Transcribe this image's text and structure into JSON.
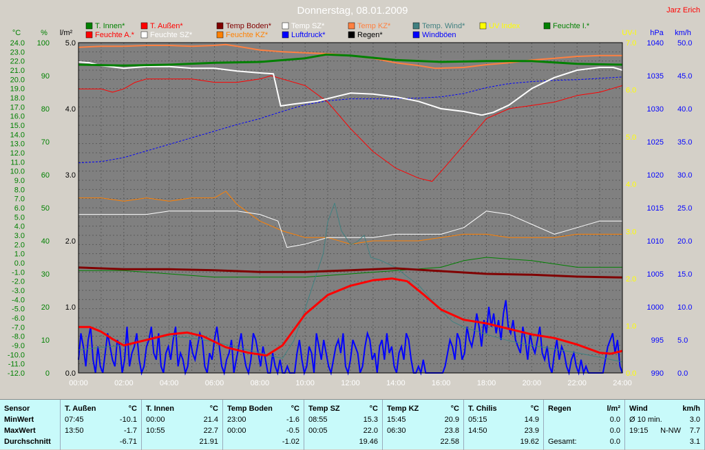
{
  "chart_data": {
    "type": "line",
    "title": "Donnerstag, 08.01.2009",
    "author": "Jarz Erich",
    "x_ticks": [
      "00:00",
      "02:00",
      "04:00",
      "06:00",
      "08:00",
      "10:00",
      "12:00",
      "14:00",
      "16:00",
      "18:00",
      "20:00",
      "22:00",
      "24:00"
    ],
    "axes": {
      "temp": {
        "unit": "°C",
        "min": -12,
        "max": 24,
        "ticks": [
          "24.0",
          "23.0",
          "22.0",
          "21.0",
          "20.0",
          "19.0",
          "18.0",
          "17.0",
          "16.0",
          "15.0",
          "14.0",
          "13.0",
          "12.0",
          "11.0",
          "10.0",
          "9.0",
          "8.0",
          "7.0",
          "6.0",
          "5.0",
          "4.0",
          "3.0",
          "2.0",
          "1.0",
          "0.0",
          "-1.0",
          "-2.0",
          "-3.0",
          "-4.0",
          "-5.0",
          "-6.0",
          "-7.0",
          "-8.0",
          "-9.0",
          "-10.0",
          "-11.0",
          "-12.0"
        ]
      },
      "humidity": {
        "unit": "%",
        "min": 0,
        "max": 100,
        "ticks": [
          "100",
          "90",
          "80",
          "70",
          "60",
          "50",
          "40",
          "30",
          "20",
          "10",
          "0"
        ]
      },
      "rain": {
        "unit": "l/m²",
        "min": 0,
        "max": 5,
        "ticks": [
          "5.0",
          "4.0",
          "3.0",
          "2.0",
          "1.0",
          "0.0"
        ]
      },
      "uv": {
        "unit": "UV-I",
        "min": 0,
        "max": 7,
        "ticks": [
          "7.0",
          "6.0",
          "5.0",
          "4.0",
          "3.0",
          "2.0",
          "1.0",
          "0.0"
        ]
      },
      "pressure": {
        "unit": "hPa",
        "min": 990,
        "max": 1040,
        "ticks": [
          "1040",
          "1035",
          "1030",
          "1025",
          "1020",
          "1015",
          "1010",
          "1005",
          "1000",
          "995",
          "990"
        ]
      },
      "wind": {
        "unit": "km/h",
        "min": 0,
        "max": 50,
        "ticks": [
          "50.0",
          "45.0",
          "40.0",
          "35.0",
          "30.0",
          "25.0",
          "20.0",
          "15.0",
          "10.0",
          "5.0",
          "0.0"
        ]
      }
    },
    "legend": [
      {
        "name": "T. Innen*",
        "color": "#008000"
      },
      {
        "name": "T. Außen*",
        "color": "#ff0000"
      },
      {
        "name": "Temp Boden*",
        "color": "#800000"
      },
      {
        "name": "Temp SZ*",
        "color": "#ffffff"
      },
      {
        "name": "Temp KZ*",
        "color": "#ff8040"
      },
      {
        "name": "Temp. Wind*",
        "color": "#408080"
      },
      {
        "name": "UV Index",
        "color": "#ffff00"
      },
      {
        "name": "Feuchte I.*",
        "color": "#008000"
      },
      {
        "name": "Feuchte A.*",
        "color": "#ff0000"
      },
      {
        "name": "Feuchte SZ*",
        "color": "#ffffff"
      },
      {
        "name": "Feuchte KZ*",
        "color": "#ff8000"
      },
      {
        "name": "Luftdruck*",
        "color": "#0000ff"
      },
      {
        "name": "Regen*",
        "color": "#000000"
      },
      {
        "name": "Windböen",
        "color": "#0000ff"
      }
    ],
    "series": [
      {
        "name": "T. Innen*",
        "axis": "temp",
        "color": "#008000",
        "width": 3,
        "x": [
          0,
          2,
          4,
          6,
          8,
          10,
          10.92,
          12,
          14,
          16,
          18,
          20,
          22,
          24
        ],
        "y": [
          21.6,
          21.5,
          21.6,
          21.8,
          21.9,
          22.3,
          22.7,
          22.6,
          22.1,
          21.9,
          22.0,
          22.0,
          21.7,
          21.6
        ]
      },
      {
        "name": "T. Außen*",
        "axis": "temp",
        "color": "#ff0000",
        "width": 3,
        "x": [
          0,
          0.5,
          1,
          1.5,
          2,
          3,
          4,
          4.8,
          5.5,
          6.5,
          7.5,
          8.3,
          9,
          10,
          11,
          12,
          13,
          13.83,
          14.5,
          15.2,
          16,
          17,
          18,
          19,
          20,
          21,
          22,
          23,
          23.5,
          24
        ],
        "y": [
          -7.0,
          -7.0,
          -7.5,
          -8.3,
          -9.0,
          -8.4,
          -7.8,
          -7.6,
          -8.0,
          -9.2,
          -9.8,
          -10.1,
          -9.0,
          -5.6,
          -3.5,
          -2.5,
          -1.9,
          -1.7,
          -2.0,
          -3.4,
          -5.1,
          -6.2,
          -6.6,
          -7.2,
          -7.8,
          -8.2,
          -8.9,
          -9.8,
          -9.9,
          -9.6
        ]
      },
      {
        "name": "Temp Boden*",
        "axis": "temp",
        "color": "#800000",
        "width": 3,
        "x": [
          0,
          2,
          4,
          6,
          8,
          10,
          12,
          14,
          16,
          18,
          20,
          22,
          24
        ],
        "y": [
          -0.5,
          -0.7,
          -0.7,
          -0.8,
          -1.0,
          -1.0,
          -0.8,
          -0.6,
          -0.9,
          -1.2,
          -1.3,
          -1.5,
          -1.6
        ]
      },
      {
        "name": "Temp SZ*",
        "axis": "temp",
        "color": "#ffffff",
        "width": 2,
        "x": [
          0,
          0.5,
          1,
          2,
          3,
          4,
          5,
          6,
          7,
          8,
          8.6,
          8.92,
          9.5,
          10.5,
          11.5,
          12,
          13,
          14,
          15,
          16,
          17,
          17.8,
          18.3,
          19,
          20,
          21,
          22,
          23,
          23.6,
          24
        ],
        "y": [
          21.9,
          21.8,
          21.5,
          21.2,
          21.4,
          21.4,
          21.2,
          21.2,
          20.9,
          20.7,
          20.6,
          17.1,
          17.3,
          17.6,
          18.2,
          18.5,
          18.4,
          18.1,
          17.6,
          16.8,
          16.5,
          16.1,
          16.4,
          17.2,
          19.0,
          20.2,
          21.0,
          21.3,
          21.3,
          21.0
        ]
      },
      {
        "name": "Temp KZ*",
        "axis": "temp",
        "color": "#ff8040",
        "width": 2,
        "x": [
          0,
          1,
          2,
          3,
          4,
          5,
          6,
          6.5,
          7,
          8,
          9,
          10,
          11,
          12,
          13,
          14,
          15,
          15.75,
          17,
          18,
          19,
          20,
          21,
          22,
          23,
          24
        ],
        "y": [
          23.5,
          23.6,
          23.6,
          23.7,
          23.7,
          23.6,
          23.7,
          23.8,
          23.6,
          23.2,
          23.0,
          22.9,
          22.8,
          22.6,
          22.3,
          21.8,
          21.5,
          21.2,
          21.3,
          21.6,
          21.8,
          22.1,
          22.3,
          22.5,
          22.6,
          22.6
        ]
      },
      {
        "name": "Temp. Wind*",
        "axis": "temp",
        "color": "#408080",
        "width": 1,
        "x": [
          0,
          1,
          2,
          3,
          4,
          5,
          6,
          7,
          8,
          8.6,
          9,
          9.5,
          10,
          10.4,
          10.8,
          11,
          11.3,
          11.6,
          12,
          12.3,
          12.6,
          12.9,
          13.3,
          14,
          14.5,
          15,
          15.5,
          16,
          16.5,
          17,
          18,
          19,
          20,
          21,
          22,
          23,
          24
        ],
        "y": [
          -9.5,
          -9.2,
          -9.0,
          -8.3,
          -8.0,
          -8.2,
          -8.6,
          -9.2,
          -9.8,
          -10.2,
          -10.4,
          -8.5,
          -5.0,
          -2.0,
          1.0,
          4.5,
          6.5,
          3.5,
          2.0,
          2.3,
          3.0,
          0.6,
          0.3,
          -0.5,
          -1.5,
          -2.4,
          -3.8,
          -5.2,
          -6.4,
          -7.0,
          -7.8,
          -8.5,
          -9.0,
          -9.4,
          -9.8,
          -10.3,
          -10.8
        ]
      },
      {
        "name": "Feuchte I.*",
        "axis": "humidity",
        "color": "#008000",
        "width": 1,
        "x": [
          0,
          2,
          4,
          6,
          8,
          10,
          12,
          14,
          16,
          17,
          18,
          20,
          22,
          24
        ],
        "y": [
          31,
          31,
          30,
          29,
          29,
          29,
          30,
          31,
          32,
          34,
          35,
          34,
          32,
          32
        ]
      },
      {
        "name": "Feuchte A.*",
        "axis": "humidity",
        "color": "#ff0000",
        "width": 1,
        "x": [
          0,
          1,
          1.5,
          2,
          2.5,
          3,
          4,
          5,
          6,
          7,
          8,
          8.5,
          9,
          10,
          11,
          12,
          13,
          14,
          15,
          15.6,
          16,
          17,
          18,
          19,
          20,
          21,
          22,
          23,
          24
        ],
        "y": [
          86,
          86,
          85,
          86,
          88,
          89,
          89,
          89,
          88,
          88,
          89,
          90,
          89,
          87,
          82,
          74,
          67,
          62,
          59,
          58,
          61,
          69,
          77,
          80,
          81,
          82,
          84,
          85,
          87
        ]
      },
      {
        "name": "Feuchte SZ*",
        "axis": "humidity",
        "color": "#ffffff",
        "width": 1,
        "x": [
          0,
          1,
          2,
          3,
          4,
          5,
          6,
          7,
          8,
          8.8,
          9.2,
          10,
          11,
          12,
          13,
          14,
          15,
          16,
          17,
          18,
          19,
          20,
          21,
          22,
          23,
          24
        ],
        "y": [
          48,
          48,
          48,
          48,
          49,
          49,
          49,
          49,
          48,
          46,
          38,
          39,
          41,
          41,
          41,
          42,
          42,
          42,
          44,
          49,
          48,
          45,
          42,
          44,
          46,
          46
        ]
      },
      {
        "name": "Feuchte KZ*",
        "axis": "humidity",
        "color": "#ff8000",
        "width": 1,
        "x": [
          0,
          1,
          2,
          3,
          4,
          5,
          6,
          6.5,
          7,
          8,
          9,
          10,
          11,
          12,
          13,
          14,
          15,
          16,
          17,
          18,
          19,
          20,
          21,
          22,
          23,
          24
        ],
        "y": [
          53,
          53,
          52,
          53,
          52,
          53,
          53,
          55,
          51,
          46,
          43,
          41,
          41,
          39,
          40,
          40,
          40,
          41,
          42,
          42,
          41,
          41,
          41,
          42,
          42,
          42
        ]
      },
      {
        "name": "Luftdruck*",
        "axis": "pressure",
        "color": "#0000ff",
        "width": 1,
        "dash": "3,2",
        "x": [
          0,
          1,
          2,
          3,
          4,
          5,
          6,
          7,
          8,
          9,
          10,
          11,
          12,
          13,
          14,
          15,
          16,
          17,
          18,
          19,
          20,
          21,
          22,
          23,
          24
        ],
        "y": [
          1021.8,
          1022.0,
          1022.6,
          1023.6,
          1024.6,
          1025.6,
          1026.6,
          1027.6,
          1028.5,
          1029.6,
          1030.6,
          1031.2,
          1031.5,
          1031.5,
          1031.5,
          1031.6,
          1031.8,
          1032.3,
          1033.2,
          1033.8,
          1034.1,
          1034.3,
          1034.4,
          1034.6,
          1034.8
        ]
      },
      {
        "name": "Regen*",
        "axis": "rain",
        "color": "#000000",
        "width": 1,
        "x": [
          0,
          24
        ],
        "y": [
          0,
          0
        ]
      },
      {
        "name": "UV Index",
        "axis": "uv",
        "color": "#ffff00",
        "width": 2,
        "x": [
          0,
          11.8,
          11.9,
          12.6,
          12.7,
          24
        ],
        "y": [
          0,
          0,
          0.1,
          0.1,
          0,
          0
        ]
      }
    ],
    "gusts": {
      "name": "Windböen",
      "axis": "wind",
      "color": "#0000ff",
      "values": [
        2,
        6,
        4,
        1,
        5,
        7,
        2,
        0,
        4,
        1,
        0,
        3,
        6,
        4,
        2,
        1,
        5,
        4,
        0,
        2,
        7,
        1,
        3,
        4,
        6,
        2,
        0,
        1,
        4,
        5,
        7,
        3,
        2,
        6,
        1,
        0,
        3,
        4,
        2,
        5,
        7,
        1,
        3,
        2,
        0,
        1,
        5,
        3,
        2,
        4,
        6,
        5,
        1,
        0,
        3,
        2,
        5,
        7,
        4,
        1,
        0,
        2,
        3,
        5,
        0,
        2,
        4,
        6,
        3,
        1,
        0,
        2,
        6,
        5,
        3,
        1,
        4,
        2,
        0,
        0,
        3,
        1,
        0,
        2,
        0,
        0,
        1,
        0,
        0,
        0,
        3,
        5,
        2,
        0,
        1,
        4,
        3,
        0,
        6,
        4,
        2,
        5,
        3,
        1,
        0,
        2,
        4,
        5,
        3,
        6,
        1,
        0,
        2,
        5,
        4,
        3,
        0,
        1,
        4,
        6,
        5,
        2,
        3,
        0,
        4,
        5,
        2,
        6,
        3,
        4,
        1,
        0,
        3,
        4,
        2,
        6,
        5,
        2,
        0,
        0,
        1,
        0,
        2,
        0,
        0,
        0,
        0,
        0,
        0,
        0,
        0,
        1,
        3,
        5,
        4,
        2,
        6,
        5,
        2,
        3,
        7,
        5,
        4,
        6,
        9,
        7,
        4,
        8,
        6,
        10,
        7,
        9,
        6,
        8,
        5,
        9,
        11,
        7,
        6,
        8,
        5,
        4,
        3,
        7,
        5,
        2,
        6,
        4,
        3,
        5,
        7,
        3,
        2,
        4,
        1,
        0,
        3,
        5,
        2,
        4,
        3,
        1,
        0,
        2,
        3,
        1,
        0,
        2,
        0,
        1,
        0,
        0,
        0,
        0,
        0,
        0,
        0,
        2,
        4,
        5,
        6,
        3,
        5,
        1,
        0
      ]
    }
  },
  "legend_panel": [
    {
      "title": "Sensor",
      "unit": "",
      "rows": [
        {
          "l": "MinWert",
          "m": "",
          "r": ""
        },
        {
          "l": "MaxWert",
          "m": "",
          "r": ""
        },
        {
          "l": "Durchschnitt",
          "m": "",
          "r": ""
        }
      ]
    },
    {
      "title": "T. Außen",
      "unit": "°C",
      "rows": [
        {
          "l": "07:45",
          "m": "",
          "r": "-10.1"
        },
        {
          "l": "13:50",
          "m": "",
          "r": "-1.7"
        },
        {
          "l": "",
          "m": "",
          "r": "-6.71"
        }
      ]
    },
    {
      "title": "T. Innen",
      "unit": "°C",
      "rows": [
        {
          "l": "00:00",
          "m": "",
          "r": "21.4"
        },
        {
          "l": "10:55",
          "m": "",
          "r": "22.7"
        },
        {
          "l": "",
          "m": "",
          "r": "21.91"
        }
      ]
    },
    {
      "title": "Temp Boden",
      "unit": "°C",
      "rows": [
        {
          "l": "23:00",
          "m": "",
          "r": "-1.6"
        },
        {
          "l": "00:00",
          "m": "",
          "r": "-0.5"
        },
        {
          "l": "",
          "m": "",
          "r": "-1.02"
        }
      ]
    },
    {
      "title": "Temp SZ",
      "unit": "°C",
      "rows": [
        {
          "l": "08:55",
          "m": "",
          "r": "15.3"
        },
        {
          "l": "00:05",
          "m": "",
          "r": "22.0"
        },
        {
          "l": "",
          "m": "",
          "r": "19.46"
        }
      ]
    },
    {
      "title": "Temp KZ",
      "unit": "°C",
      "rows": [
        {
          "l": "15:45",
          "m": "",
          "r": "20.9"
        },
        {
          "l": "06:30",
          "m": "",
          "r": "23.8"
        },
        {
          "l": "",
          "m": "",
          "r": "22.58"
        }
      ]
    },
    {
      "title": "T. Chilis",
      "unit": "°C",
      "rows": [
        {
          "l": "05:15",
          "m": "",
          "r": "14.9"
        },
        {
          "l": "14:50",
          "m": "",
          "r": "23.9"
        },
        {
          "l": "",
          "m": "",
          "r": "19.62"
        }
      ]
    },
    {
      "title": "Regen",
      "unit": "l/m²",
      "rows": [
        {
          "l": "",
          "m": "",
          "r": "0.0"
        },
        {
          "l": "",
          "m": "",
          "r": "0.0"
        },
        {
          "l": "Gesamt:",
          "m": "",
          "r": "0.0"
        }
      ]
    },
    {
      "title": "Wind",
      "unit": "km/h",
      "rows": [
        {
          "l": "Ø 10 min.",
          "m": "",
          "r": "3.0"
        },
        {
          "l": "19:15",
          "m": "N-NW",
          "r": "7.7"
        },
        {
          "l": "",
          "m": "",
          "r": "3.1"
        }
      ]
    }
  ]
}
